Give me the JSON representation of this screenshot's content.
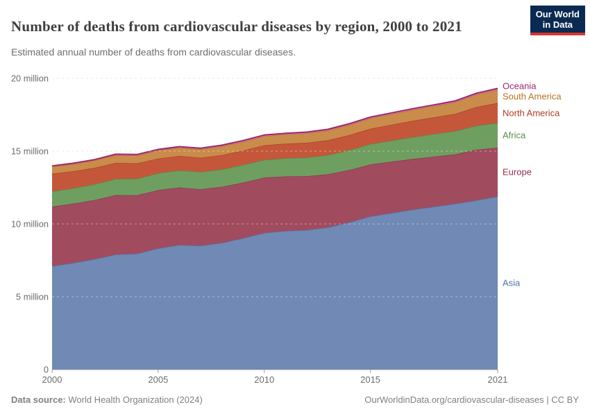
{
  "header": {
    "title": "Number of deaths from cardiovascular diseases by region, 2000 to 2021",
    "subtitle": "Estimated annual number of deaths from cardiovascular diseases.",
    "logo_line1": "Our World",
    "logo_line2": "in Data",
    "logo_colors": {
      "background": "#0b2a51",
      "bar": "#d5352f"
    }
  },
  "footer": {
    "source_label": "Data source:",
    "source_value": " World Health Organization (2024)",
    "credit": "OurWorldinData.org/cardiovascular-diseases | CC BY"
  },
  "chart_data": {
    "type": "area",
    "stacked": true,
    "title": "Number of deaths from cardiovascular diseases by region, 2000 to 2021",
    "xlabel": "",
    "ylabel": "",
    "y_unit": "million",
    "ylim": [
      0,
      20
    ],
    "grid": "horizontal-dashed",
    "legend_position": "right-of-plot",
    "x": [
      2000,
      2001,
      2002,
      2003,
      2004,
      2005,
      2006,
      2007,
      2008,
      2009,
      2010,
      2011,
      2012,
      2013,
      2014,
      2015,
      2016,
      2017,
      2018,
      2019,
      2020,
      2021
    ],
    "xticks": [
      {
        "value": 2000,
        "label": "2000"
      },
      {
        "value": 2005,
        "label": "2005"
      },
      {
        "value": 2010,
        "label": "2010"
      },
      {
        "value": 2015,
        "label": "2015"
      },
      {
        "value": 2021,
        "label": "2021"
      }
    ],
    "yticks": [
      {
        "value": 0,
        "label": "0"
      },
      {
        "value": 5,
        "label": "5 million"
      },
      {
        "value": 10,
        "label": "10 million"
      },
      {
        "value": 15,
        "label": "15 million"
      },
      {
        "value": 20,
        "label": "20 million"
      }
    ],
    "series": [
      {
        "name": "Asia",
        "color_line": "#4e73ad",
        "color_fill": "#7089b5",
        "values": [
          7.1,
          7.32,
          7.58,
          7.9,
          7.95,
          8.32,
          8.55,
          8.5,
          8.7,
          9.02,
          9.38,
          9.52,
          9.58,
          9.76,
          10.1,
          10.52,
          10.75,
          10.98,
          11.18,
          11.38,
          11.62,
          11.88
        ]
      },
      {
        "name": "Europe",
        "color_line": "#903049",
        "color_fill": "#a04c5e",
        "values": [
          4.09,
          4.07,
          4.06,
          4.08,
          4.02,
          4.0,
          3.95,
          3.88,
          3.85,
          3.82,
          3.8,
          3.74,
          3.7,
          3.65,
          3.6,
          3.56,
          3.52,
          3.48,
          3.44,
          3.4,
          3.48,
          3.36
        ]
      },
      {
        "name": "Africa",
        "color_line": "#568c45",
        "color_fill": "#6f9e61",
        "values": [
          1.04,
          1.06,
          1.08,
          1.11,
          1.13,
          1.16,
          1.18,
          1.19,
          1.2,
          1.21,
          1.22,
          1.25,
          1.28,
          1.32,
          1.36,
          1.4,
          1.45,
          1.5,
          1.55,
          1.6,
          1.65,
          1.7
        ]
      },
      {
        "name": "North America",
        "color_line": "#ae3b25",
        "color_fill": "#c4573a",
        "values": [
          1.22,
          1.17,
          1.13,
          1.1,
          1.06,
          1.01,
          0.99,
          0.98,
          0.98,
          0.99,
          1.0,
          1.0,
          1.01,
          1.02,
          1.04,
          1.06,
          1.09,
          1.12,
          1.15,
          1.18,
          1.28,
          1.37
        ]
      },
      {
        "name": "South America",
        "color_line": "#b9731f",
        "color_fill": "#c98c4b",
        "values": [
          0.48,
          0.49,
          0.51,
          0.53,
          0.54,
          0.56,
          0.57,
          0.58,
          0.6,
          0.61,
          0.63,
          0.64,
          0.66,
          0.67,
          0.69,
          0.71,
          0.73,
          0.75,
          0.77,
          0.79,
          0.85,
          0.9
        ]
      },
      {
        "name": "Oceania",
        "color_line": "#a1256d",
        "color_fill": "#c983ab",
        "values": [
          0.06,
          0.06,
          0.06,
          0.07,
          0.07,
          0.07,
          0.07,
          0.07,
          0.08,
          0.08,
          0.08,
          0.08,
          0.08,
          0.08,
          0.09,
          0.09,
          0.09,
          0.09,
          0.09,
          0.1,
          0.1,
          0.1
        ]
      }
    ]
  }
}
